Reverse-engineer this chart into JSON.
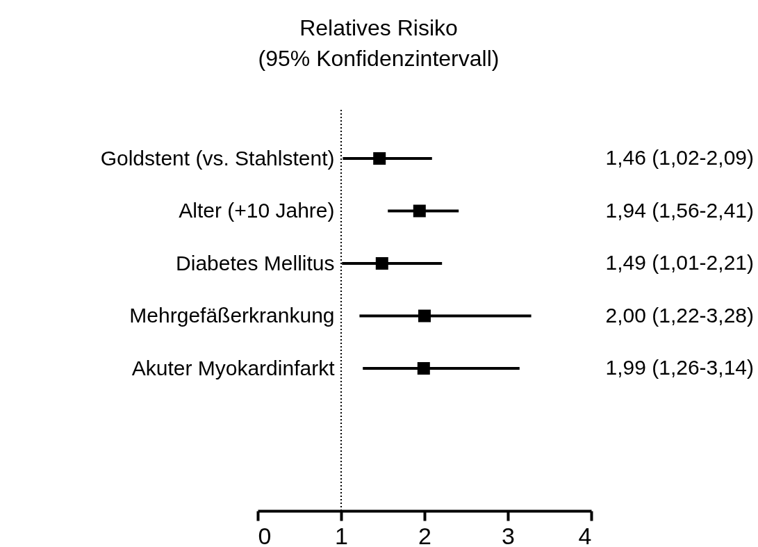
{
  "chart_data": {
    "type": "scatter",
    "orientation": "horizontal",
    "title": "Relatives Risiko\n(95% Konfidenzintervall)",
    "categories": [
      "Goldstent (vs. Stahlstent)",
      "Alter (+10 Jahre)",
      "Diabetes Mellitus",
      "Mehrgefäßerkrankung",
      "Akuter Myokardinfarkt"
    ],
    "values": [
      1.46,
      1.94,
      1.49,
      2.0,
      1.99
    ],
    "errors": [
      [
        1.02,
        2.09
      ],
      [
        1.56,
        2.41
      ],
      [
        1.01,
        2.21
      ],
      [
        1.22,
        3.28
      ],
      [
        1.26,
        3.14
      ]
    ],
    "value_labels": [
      "1,46 (1,02-2,09)",
      "1,94 (1,56-2,41)",
      "1,49 (1,01-2,21)",
      "2,00 (1,22-3,28)",
      "1,99 (1,26-3,14)"
    ],
    "color": "#000000",
    "marker": "square",
    "xlim": [
      0,
      4
    ],
    "xticks": [
      0,
      1,
      2,
      3,
      4
    ],
    "ref_lines": [
      {
        "axis": "x",
        "value": 1,
        "line_style": "dotted"
      }
    ]
  }
}
